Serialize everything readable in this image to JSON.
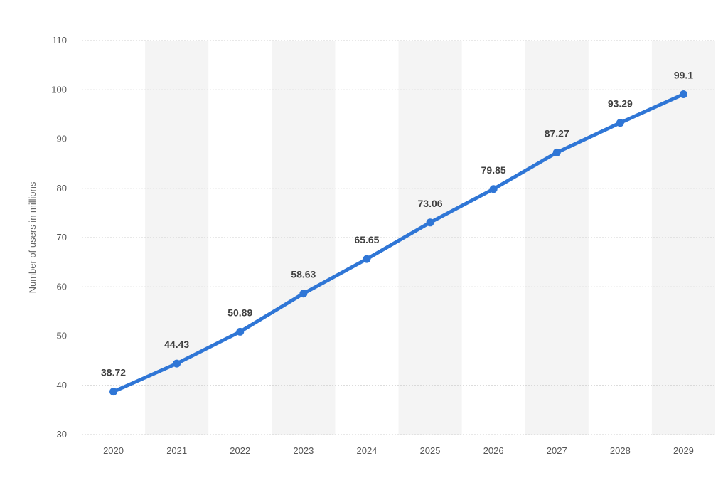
{
  "chart_data": {
    "type": "line",
    "title": "",
    "xlabel": "",
    "ylabel": "Number of users in millions",
    "categories": [
      "2020",
      "2021",
      "2022",
      "2023",
      "2024",
      "2025",
      "2026",
      "2027",
      "2028",
      "2029"
    ],
    "series": [
      {
        "values": [
          38.72,
          44.43,
          50.89,
          58.63,
          65.65,
          73.06,
          79.85,
          87.27,
          93.29,
          99.1
        ],
        "labels": [
          "38.72",
          "44.43",
          "50.89",
          "58.63",
          "65.65",
          "73.06",
          "79.85",
          "87.27",
          "93.29",
          "99.1"
        ]
      }
    ],
    "ylim": [
      30,
      110
    ],
    "yticks": [
      30,
      40,
      50,
      60,
      70,
      80,
      90,
      100,
      110
    ],
    "ytick_labels": [
      "30",
      "40",
      "50",
      "60",
      "70",
      "80",
      "90",
      "100",
      "110"
    ],
    "grid": true,
    "legend": "none",
    "colors": {
      "line": "#2f76d6",
      "alternate_band": "#f4f4f4",
      "gridline": "#d0d0d0"
    }
  }
}
